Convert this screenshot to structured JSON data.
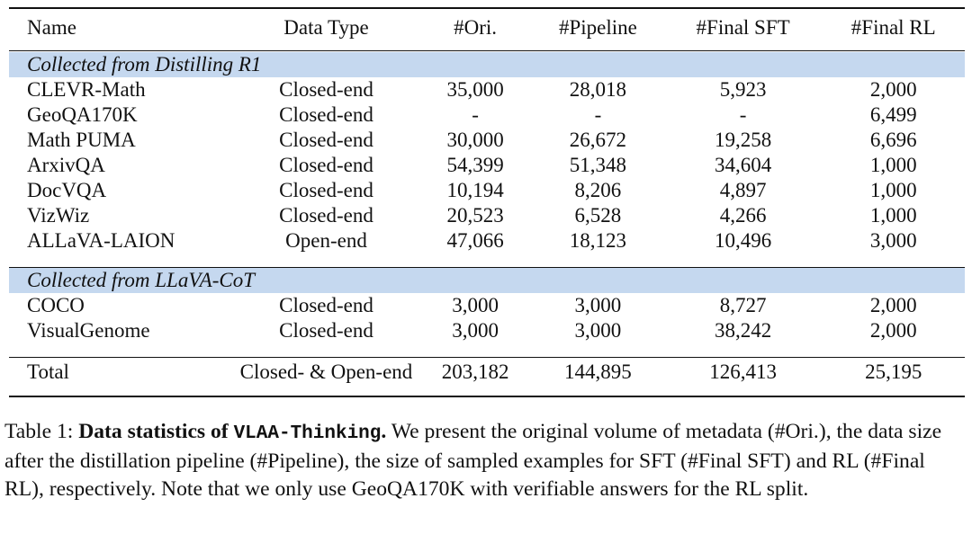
{
  "table": {
    "headers": [
      "Name",
      "Data Type",
      "#Ori.",
      "#Pipeline",
      "#Final SFT",
      "#Final RL"
    ],
    "sections": [
      {
        "title": "Collected from Distilling R1",
        "rows": [
          [
            "CLEVR-Math",
            "Closed-end",
            "35,000",
            "28,018",
            "5,923",
            "2,000"
          ],
          [
            "GeoQA170K",
            "Closed-end",
            "-",
            "-",
            "-",
            "6,499"
          ],
          [
            "Math PUMA",
            "Closed-end",
            "30,000",
            "26,672",
            "19,258",
            "6,696"
          ],
          [
            "ArxivQA",
            "Closed-end",
            "54,399",
            "51,348",
            "34,604",
            "1,000"
          ],
          [
            "DocVQA",
            "Closed-end",
            "10,194",
            "8,206",
            "4,897",
            "1,000"
          ],
          [
            "VizWiz",
            "Closed-end",
            "20,523",
            "6,528",
            "4,266",
            "1,000"
          ],
          [
            "ALLaVA-LAION",
            "Open-end",
            "47,066",
            "18,123",
            "10,496",
            "3,000"
          ]
        ]
      },
      {
        "title": "Collected from LLaVA-CoT",
        "rows": [
          [
            "COCO",
            "Closed-end",
            "3,000",
            "3,000",
            "8,727",
            "2,000"
          ],
          [
            "VisualGenome",
            "Closed-end",
            "3,000",
            "3,000",
            "38,242",
            "2,000"
          ]
        ]
      }
    ],
    "total": [
      "Total",
      "Closed- & Open-end",
      "203,182",
      "144,895",
      "126,413",
      "25,195"
    ]
  },
  "caption": {
    "label": "Table 1:",
    "bold_lead": "Data statistics of",
    "dataset_name": "VLAA-Thinking",
    "bold_end": ".",
    "body": "We present the original volume of metadata (#Ori.), the data size after the distillation pipeline (#Pipeline), the size of sampled examples for SFT (#Final SFT) and RL (#Final RL), respectively. Note that we only use GeoQA170K with verifiable answers for the RL split."
  }
}
